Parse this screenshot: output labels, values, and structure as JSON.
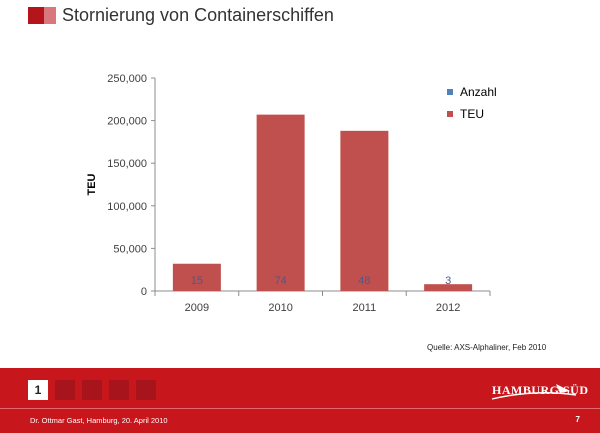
{
  "slide": {
    "title": "Stornierung von Containerschiffen",
    "source": "Quelle: AXS-Alphaliner, Feb 2010",
    "footer": "Dr. Ottmar Gast, Hamburg, 20. April 2010",
    "page_number": "7",
    "current_page_indicator": "1",
    "logo": "HAMBURG SÜD",
    "colors": {
      "brand_red": "#c8161d",
      "title_dark_red": "#b3151b",
      "title_light_red": "#d9787c"
    }
  },
  "chart_data": {
    "type": "bar",
    "title": "",
    "xlabel": "",
    "ylabel": "TEU",
    "categories": [
      "2009",
      "2010",
      "2011",
      "2012"
    ],
    "series": [
      {
        "name": "Anzahl",
        "values": [
          15,
          74,
          48,
          3
        ],
        "color": "#4f81bd"
      },
      {
        "name": "TEU",
        "values": [
          32000,
          207000,
          188000,
          8000
        ],
        "color": "#c0504d"
      }
    ],
    "data_labels": [
      "15",
      "74",
      "48",
      "3"
    ],
    "ylim": [
      0,
      250000
    ],
    "yticks": [
      "0",
      "50,000",
      "100,000",
      "150,000",
      "200,000",
      "250,000"
    ],
    "grid": false,
    "legend_position": "top-right"
  }
}
